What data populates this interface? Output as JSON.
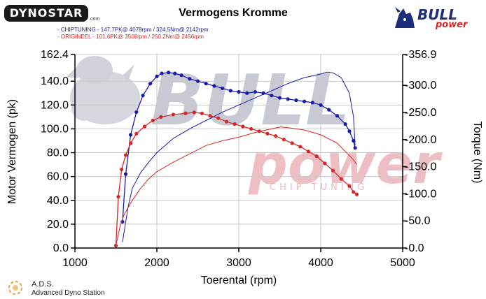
{
  "header": {
    "title": "Vermogens Kromme",
    "brand_left": "DYNOSTAR",
    "brand_left_suffix": ".com",
    "brand_right": "BULL",
    "brand_right_sub": "power",
    "brand_right_tag": "CHIP TUNING"
  },
  "footer": {
    "ads_title": "A.D.S.",
    "ads_subtitle": "Advanced Dyno Station"
  },
  "watermark": {
    "word1": "BULL",
    "word2": "power",
    "word3": "CHIP TUNING"
  },
  "colors": {
    "chiptuning": "#1a1aa8",
    "origineel": "#d62828",
    "watermark_blue": "#9aa0b4",
    "watermark_red": "#e7a9b0"
  },
  "chart_data": {
    "type": "line",
    "title": "Vermogens Kromme",
    "xlabel": "Toerental (rpm)",
    "ylabel_left": "Motor Vermogen (pk)",
    "ylabel_right": "Torque (Nm)",
    "xlim": [
      1000,
      5000
    ],
    "ylim_left": [
      0,
      162.4
    ],
    "ylim_right": [
      0,
      356.9
    ],
    "xticks": [
      "1000",
      "2000",
      "3000",
      "4000",
      "5000"
    ],
    "yticks_left": [
      "0.0",
      "20.0",
      "40.0",
      "60.0",
      "80.0",
      "100.0",
      "120.0",
      "140.0",
      "162.4"
    ],
    "yticks_right": [
      "0.0",
      "50.0",
      "100.0",
      "150.0",
      "200.0",
      "250.0",
      "300.0",
      "356.9"
    ],
    "grid": true,
    "legend_position": "top-left",
    "legend": [
      "- CHIPTUNING  - 147.7PK@ 4078rpm / 324.5Nm@ 2142rpm",
      "- ORIGINEEL  - 101.6PK@ 3508rpm / 250.2Nm@ 2456rpm"
    ],
    "series": [
      {
        "name": "CHIPTUNING",
        "kind": "torque",
        "axis": "left",
        "style": "dotted",
        "color": "#1a1aa8",
        "x": [
          1580,
          1620,
          1680,
          1750,
          1830,
          1920,
          2000,
          2060,
          2142,
          2220,
          2300,
          2400,
          2500,
          2600,
          2700,
          2800,
          2900,
          3000,
          3100,
          3200,
          3300,
          3400,
          3500,
          3600,
          3700,
          3800,
          3900,
          4000,
          4100,
          4200,
          4300,
          4350,
          4400,
          4420
        ],
        "y": [
          22,
          62,
          95,
          114,
          128,
          138,
          144,
          146.5,
          147.3,
          146.5,
          145,
          142,
          140,
          138,
          136,
          134,
          132,
          131,
          130,
          131,
          130,
          128,
          126,
          125,
          124,
          123,
          122,
          120,
          116,
          111,
          104,
          98,
          90,
          84
        ]
      },
      {
        "name": "CHIPTUNING",
        "kind": "power",
        "axis": "left",
        "style": "line",
        "color": "#1a1aa8",
        "x": [
          1580,
          1650,
          1700,
          1800,
          1900,
          2000,
          2200,
          2400,
          2600,
          2800,
          3000,
          3200,
          3400,
          3600,
          3800,
          4000,
          4078,
          4150,
          4250,
          4350,
          4400,
          4420
        ],
        "y": [
          5,
          35,
          50,
          63,
          72,
          80,
          92,
          100,
          107,
          114,
          120,
          126,
          132,
          138,
          143,
          146,
          147.7,
          147,
          143,
          130,
          110,
          86
        ]
      },
      {
        "name": "ORIGINEEL",
        "kind": "torque",
        "axis": "left",
        "style": "dotted",
        "color": "#d62828",
        "x": [
          1500,
          1530,
          1570,
          1620,
          1680,
          1750,
          1850,
          1950,
          2050,
          2200,
          2350,
          2456,
          2550,
          2650,
          2750,
          2850,
          2950,
          3050,
          3150,
          3250,
          3350,
          3450,
          3550,
          3650,
          3750,
          3850,
          3950,
          4050,
          4150,
          4250,
          4350,
          4400,
          4440
        ],
        "y": [
          2,
          43,
          66,
          78,
          88,
          96,
          102,
          107,
          110,
          112,
          113,
          113.8,
          113,
          111,
          109,
          106,
          104,
          102,
          100,
          98,
          96,
          94,
          91,
          88,
          85,
          81,
          77,
          71,
          65,
          58,
          52,
          47,
          45
        ]
      },
      {
        "name": "ORIGINEEL",
        "kind": "power",
        "axis": "left",
        "style": "line",
        "color": "#d62828",
        "x": [
          1500,
          1550,
          1600,
          1700,
          1800,
          1900,
          2000,
          2200,
          2400,
          2600,
          2800,
          3000,
          3200,
          3400,
          3508,
          3600,
          3800,
          4000,
          4200,
          4400,
          4440
        ],
        "y": [
          2,
          18,
          28,
          40,
          50,
          58,
          64,
          72,
          79,
          86,
          90,
          93,
          97,
          100,
          101.6,
          101,
          99,
          95,
          88,
          74,
          70
        ]
      }
    ]
  }
}
